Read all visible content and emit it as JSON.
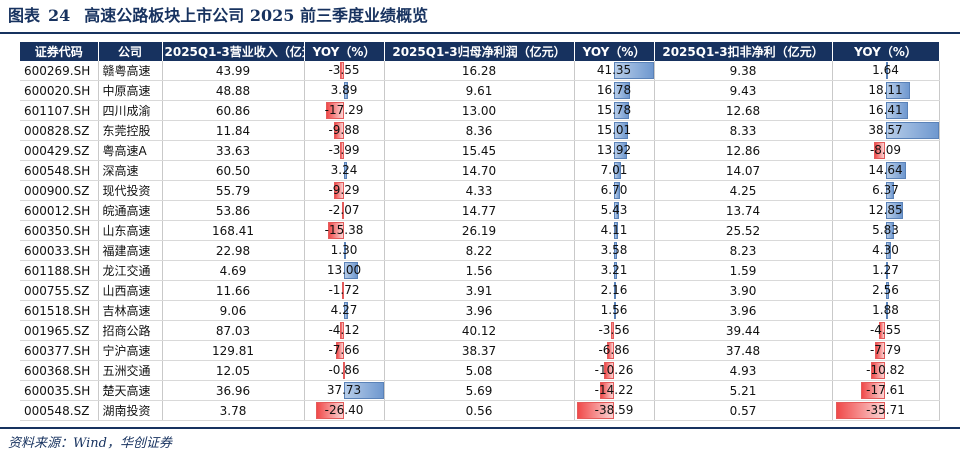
{
  "title": {
    "prefix": "图表",
    "number": "24",
    "text": "高速公路板块上市公司 2025 前三季度业绩概览"
  },
  "headers": [
    "证券代码",
    "公司",
    "2025Q1-3营业收入（亿元）",
    "YOY（%）",
    "2025Q1-3归母净利润（亿元）",
    "YOY（%）",
    "2025Q1-3扣非净利（亿元）",
    "YOY（%）"
  ],
  "rows": [
    {
      "code": "600269.SH",
      "company": "赣粤高速",
      "revenue": "43.99",
      "rev_yoy": "-3.55",
      "net_profit": "16.28",
      "np_yoy": "41.35",
      "deducted_np": "9.38",
      "dnp_yoy": "1.64"
    },
    {
      "code": "600020.SH",
      "company": "中原高速",
      "revenue": "48.88",
      "rev_yoy": "3.89",
      "net_profit": "9.61",
      "np_yoy": "16.78",
      "deducted_np": "9.43",
      "dnp_yoy": "18.11"
    },
    {
      "code": "601107.SH",
      "company": "四川成渝",
      "revenue": "60.86",
      "rev_yoy": "-17.29",
      "net_profit": "13.00",
      "np_yoy": "15.78",
      "deducted_np": "12.68",
      "dnp_yoy": "16.41"
    },
    {
      "code": "000828.SZ",
      "company": "东莞控股",
      "revenue": "11.84",
      "rev_yoy": "-9.88",
      "net_profit": "8.36",
      "np_yoy": "15.01",
      "deducted_np": "8.33",
      "dnp_yoy": "38.57"
    },
    {
      "code": "000429.SZ",
      "company": "粤高速A",
      "revenue": "33.63",
      "rev_yoy": "-3.99",
      "net_profit": "15.45",
      "np_yoy": "13.92",
      "deducted_np": "12.86",
      "dnp_yoy": "-8.09"
    },
    {
      "code": "600548.SH",
      "company": "深高速",
      "revenue": "60.50",
      "rev_yoy": "3.24",
      "net_profit": "14.70",
      "np_yoy": "7.01",
      "deducted_np": "14.07",
      "dnp_yoy": "14.64"
    },
    {
      "code": "000900.SZ",
      "company": "现代投资",
      "revenue": "55.79",
      "rev_yoy": "-9.29",
      "net_profit": "4.33",
      "np_yoy": "6.70",
      "deducted_np": "4.25",
      "dnp_yoy": "6.37"
    },
    {
      "code": "600012.SH",
      "company": "皖通高速",
      "revenue": "53.86",
      "rev_yoy": "-2.07",
      "net_profit": "14.77",
      "np_yoy": "5.43",
      "deducted_np": "13.74",
      "dnp_yoy": "12.85"
    },
    {
      "code": "600350.SH",
      "company": "山东高速",
      "revenue": "168.41",
      "rev_yoy": "-15.38",
      "net_profit": "26.19",
      "np_yoy": "4.11",
      "deducted_np": "25.52",
      "dnp_yoy": "5.83"
    },
    {
      "code": "600033.SH",
      "company": "福建高速",
      "revenue": "22.98",
      "rev_yoy": "1.30",
      "net_profit": "8.22",
      "np_yoy": "3.58",
      "deducted_np": "8.23",
      "dnp_yoy": "4.30"
    },
    {
      "code": "601188.SH",
      "company": "龙江交通",
      "revenue": "4.69",
      "rev_yoy": "13.00",
      "net_profit": "1.56",
      "np_yoy": "3.21",
      "deducted_np": "1.59",
      "dnp_yoy": "1.27"
    },
    {
      "code": "000755.SZ",
      "company": "山西高速",
      "revenue": "11.66",
      "rev_yoy": "-1.72",
      "net_profit": "3.91",
      "np_yoy": "2.16",
      "deducted_np": "3.90",
      "dnp_yoy": "2.56"
    },
    {
      "code": "601518.SH",
      "company": "吉林高速",
      "revenue": "9.06",
      "rev_yoy": "4.27",
      "net_profit": "3.96",
      "np_yoy": "1.56",
      "deducted_np": "3.96",
      "dnp_yoy": "1.88"
    },
    {
      "code": "001965.SZ",
      "company": "招商公路",
      "revenue": "87.03",
      "rev_yoy": "-4.12",
      "net_profit": "40.12",
      "np_yoy": "-3.56",
      "deducted_np": "39.44",
      "dnp_yoy": "-4.55"
    },
    {
      "code": "600377.SH",
      "company": "宁沪高速",
      "revenue": "129.81",
      "rev_yoy": "-7.66",
      "net_profit": "38.37",
      "np_yoy": "-6.86",
      "deducted_np": "37.48",
      "dnp_yoy": "-7.79"
    },
    {
      "code": "600368.SH",
      "company": "五洲交通",
      "revenue": "12.05",
      "rev_yoy": "-0.86",
      "net_profit": "5.08",
      "np_yoy": "-10.26",
      "deducted_np": "4.93",
      "dnp_yoy": "-10.82"
    },
    {
      "code": "600035.SH",
      "company": "楚天高速",
      "revenue": "36.96",
      "rev_yoy": "37.73",
      "net_profit": "5.69",
      "np_yoy": "-14.22",
      "deducted_np": "5.21",
      "dnp_yoy": "-17.61"
    },
    {
      "code": "000548.SZ",
      "company": "湖南投资",
      "revenue": "3.78",
      "rev_yoy": "-26.40",
      "net_profit": "0.56",
      "np_yoy": "-38.59",
      "deducted_np": "0.57",
      "dnp_yoy": "-35.71"
    }
  ],
  "source": "资料来源：Wind，华创证券"
}
